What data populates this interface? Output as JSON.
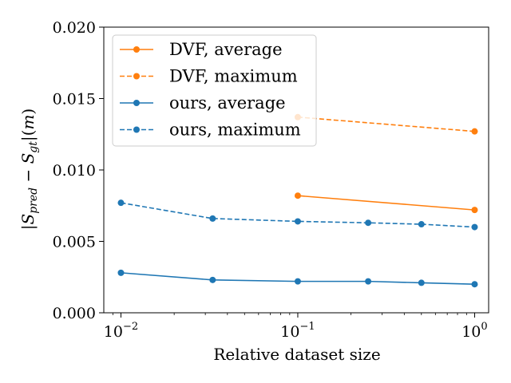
{
  "chart_data": {
    "type": "line",
    "xscale": "log",
    "xlim": [
      0.008,
      1.2
    ],
    "ylim": [
      0.0,
      0.02
    ],
    "xticks": [
      {
        "value": 0.01,
        "base": "10",
        "exp": "−2"
      },
      {
        "value": 0.1,
        "base": "10",
        "exp": "−1"
      },
      {
        "value": 1,
        "base": "10",
        "exp": "0"
      }
    ],
    "yticks": [
      {
        "value": 0.0,
        "label": "0.000"
      },
      {
        "value": 0.005,
        "label": "0.005"
      },
      {
        "value": 0.01,
        "label": "0.010"
      },
      {
        "value": 0.015,
        "label": "0.015"
      },
      {
        "value": 0.02,
        "label": "0.020"
      }
    ],
    "xlabel": "Relative dataset size",
    "ylabel": {
      "bar1": "|",
      "S1": "S",
      "sub1": "pred",
      "minus": " − ",
      "S2": "S",
      "sub2": "gt",
      "tail": "|(",
      "m": "m",
      "close": ")"
    },
    "legend_position": "upper-left",
    "series": [
      {
        "name": "DVF, average",
        "color": "#ff7f0e",
        "dash": "solid",
        "x": [
          0.1,
          1.0
        ],
        "y": [
          0.0082,
          0.0072
        ]
      },
      {
        "name": "DVF, maximum",
        "color": "#ff7f0e",
        "dash": "dashed",
        "x": [
          0.1,
          1.0
        ],
        "y": [
          0.0137,
          0.0127
        ]
      },
      {
        "name": "ours, average",
        "color": "#1f77b4",
        "dash": "solid",
        "x": [
          0.01,
          0.033,
          0.1,
          0.25,
          0.5,
          1.0
        ],
        "y": [
          0.0028,
          0.0023,
          0.0022,
          0.0022,
          0.0021,
          0.002
        ]
      },
      {
        "name": "ours, maximum",
        "color": "#1f77b4",
        "dash": "dashed",
        "x": [
          0.01,
          0.033,
          0.1,
          0.25,
          0.5,
          1.0
        ],
        "y": [
          0.0077,
          0.0066,
          0.0064,
          0.0063,
          0.0062,
          0.006
        ]
      }
    ]
  }
}
